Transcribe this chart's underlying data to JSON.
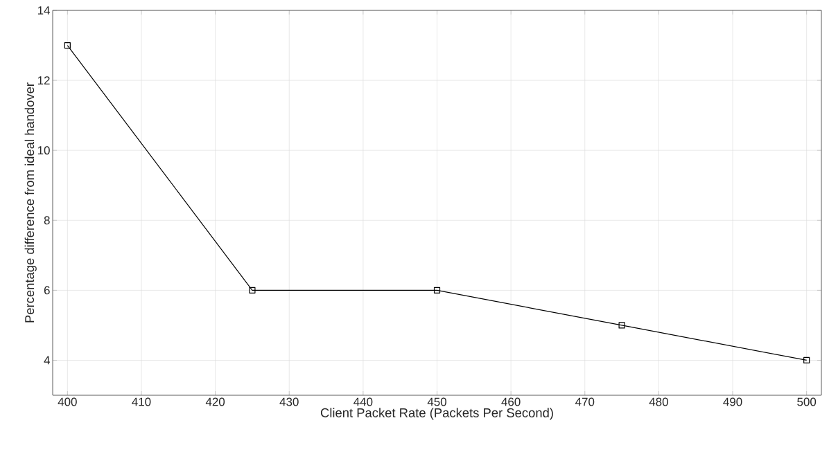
{
  "chart_data": {
    "type": "line",
    "xlabel": "Client Packet Rate (Packets Per Second)",
    "ylabel": "Percentage difference from ideal handover",
    "x": [
      400,
      425,
      450,
      475,
      500
    ],
    "series": [
      {
        "color": "#000000",
        "values": [
          13,
          6,
          6,
          5,
          4
        ]
      }
    ],
    "xlim": [
      398,
      502
    ],
    "ylim": [
      3,
      14
    ],
    "xticks": [
      400,
      410,
      420,
      430,
      440,
      450,
      460,
      470,
      480,
      490,
      500
    ],
    "yticks": [
      4,
      6,
      8,
      10,
      12,
      14
    ],
    "grid": true,
    "marker": "square",
    "line_style": "solid"
  }
}
